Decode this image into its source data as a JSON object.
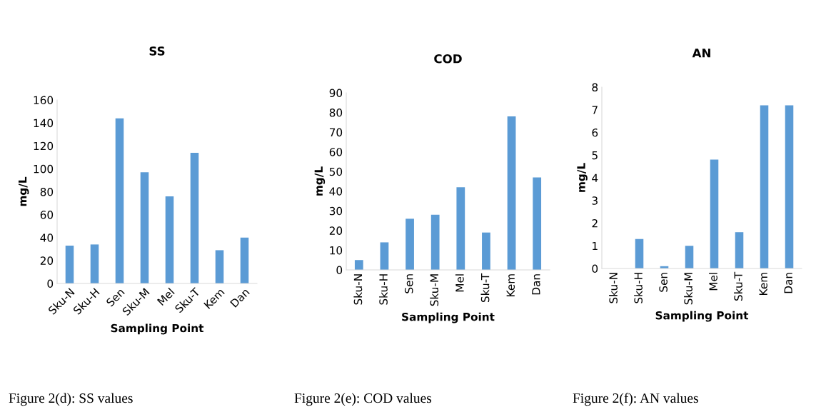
{
  "chart_data": [
    {
      "type": "bar",
      "title": "SS",
      "xlabel": "Sampling Point",
      "ylabel": "mg/L",
      "categories": [
        "Sku-N",
        "Sku-H",
        "Sen",
        "Sku-M",
        "Mel",
        "Sku-T",
        "Kem",
        "Dan"
      ],
      "values": [
        33,
        34,
        144,
        97,
        76,
        114,
        29,
        40
      ],
      "color": "#5b9bd5",
      "ylim": [
        0,
        160
      ],
      "yticks": [
        0,
        20,
        40,
        60,
        80,
        100,
        120,
        140,
        160
      ],
      "grid": false,
      "annotations": [
        "Figure 2(d): SS values"
      ]
    },
    {
      "type": "bar",
      "title": "COD",
      "xlabel": "Sampling Point",
      "ylabel": "mg/L",
      "categories": [
        "Sku-N",
        "Sku-H",
        "Sen",
        "Sku-M",
        "Mel",
        "Sku-T",
        "Kem",
        "Dan"
      ],
      "values": [
        5,
        14,
        26,
        28,
        42,
        19,
        78,
        47
      ],
      "color": "#5b9bd5",
      "ylim": [
        0,
        90
      ],
      "yticks": [
        0,
        10,
        20,
        30,
        40,
        50,
        60,
        70,
        80,
        90
      ],
      "grid": false,
      "annotations": [
        "Figure 2(e): COD values"
      ]
    },
    {
      "type": "bar",
      "title": "AN",
      "xlabel": "Sampling Point",
      "ylabel": "mg/L",
      "categories": [
        "Sku-N",
        "Sku-H",
        "Sen",
        "Sku-M",
        "Mel",
        "Sku-T",
        "Kem",
        "Dan"
      ],
      "values": [
        0,
        1.3,
        0.1,
        1.0,
        4.8,
        1.6,
        7.2,
        7.2
      ],
      "color": "#5b9bd5",
      "ylim": [
        0,
        8
      ],
      "yticks": [
        0,
        1,
        2,
        3,
        4,
        5,
        6,
        7,
        8
      ],
      "grid": false,
      "annotations": [
        "Figure 2(f): AN values"
      ]
    }
  ]
}
